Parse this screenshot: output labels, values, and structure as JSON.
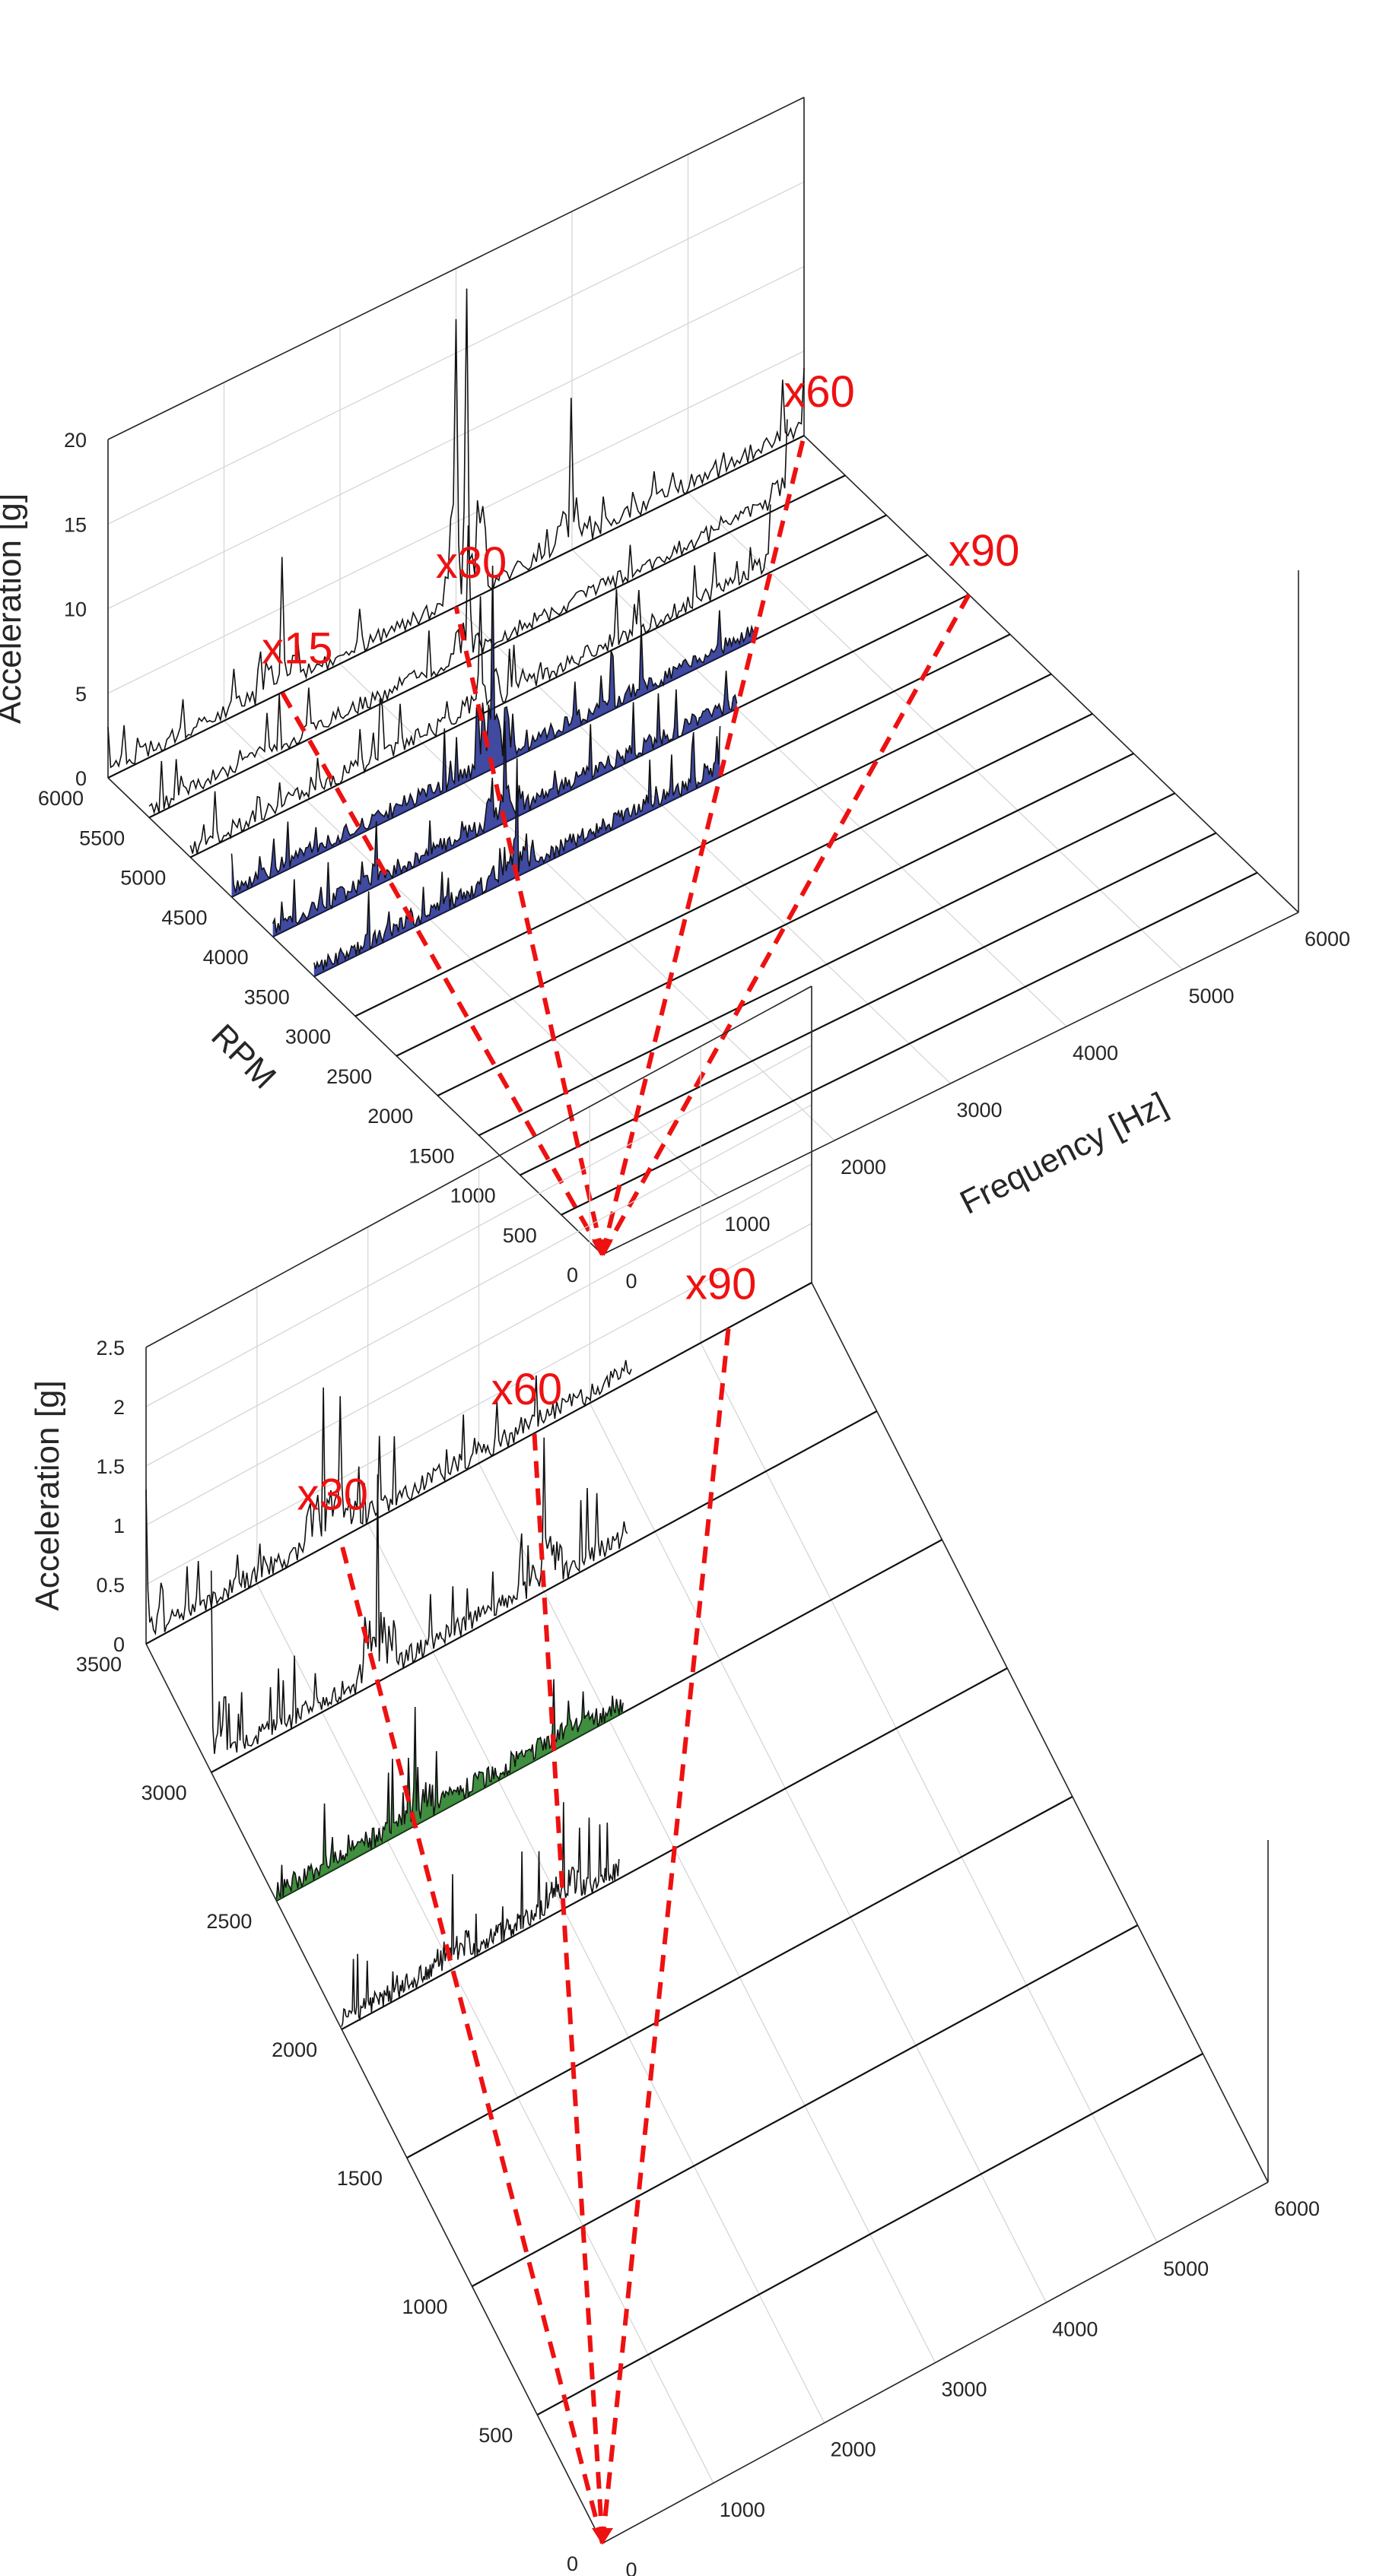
{
  "chart_data": [
    {
      "type": "waterfall-3d",
      "zlabel": "Acceleration [g]",
      "ylabel": "RPM",
      "xlabel": "Frequency [Hz]",
      "xlim": [
        0,
        6000
      ],
      "ylim": [
        0,
        6000
      ],
      "zlim": [
        0,
        20
      ],
      "xticks": [
        "0",
        "1000",
        "2000",
        "3000",
        "4000",
        "5000",
        "6000"
      ],
      "yticks": [
        "0",
        "500",
        "1000",
        "1500",
        "2000",
        "2500",
        "3000",
        "3500",
        "4000",
        "4500",
        "5000",
        "5500",
        "6000"
      ],
      "zticks": [
        "0",
        "5",
        "10",
        "15",
        "20"
      ],
      "series_rpm": [
        6000,
        5500,
        5000,
        4500,
        4000,
        3500,
        3000,
        2500,
        2000,
        1500,
        1000,
        500
      ],
      "filled_rpm": [
        4500,
        4000,
        3500
      ],
      "fill_color": "#1f2a8f",
      "peak_lines": [
        {
          "rpm": 6000,
          "freq": 0,
          "amp": 3
        },
        {
          "rpm": 6000,
          "freq": 1500,
          "amp": 8
        },
        {
          "rpm": 6000,
          "freq": 3000,
          "amp": 17
        },
        {
          "rpm": 6000,
          "freq": 3100,
          "amp": 18.5
        },
        {
          "rpm": 6000,
          "freq": 4000,
          "amp": 9
        },
        {
          "rpm": 6000,
          "freq": 6000,
          "amp": 4
        },
        {
          "rpm": 5500,
          "freq": 2750,
          "amp": 8
        },
        {
          "rpm": 5500,
          "freq": 5500,
          "amp": 5
        },
        {
          "rpm": 5000,
          "freq": 2500,
          "amp": 7
        },
        {
          "rpm": 5000,
          "freq": 5000,
          "amp": 4
        },
        {
          "rpm": 4500,
          "freq": 2250,
          "amp": 12
        },
        {
          "rpm": 4000,
          "freq": 2000,
          "amp": 6
        },
        {
          "rpm": 3500,
          "freq": 1750,
          "amp": 7
        },
        {
          "rpm": 3500,
          "freq": 3500,
          "amp": 3
        }
      ],
      "orders": [
        {
          "label": "x15",
          "order": 15
        },
        {
          "label": "x30",
          "order": 30
        },
        {
          "label": "x60",
          "order": 60
        },
        {
          "label": "x90",
          "order": 90
        }
      ],
      "order_line_color": "#ee1111"
    },
    {
      "type": "waterfall-3d",
      "zlabel": "Acceleration [g]",
      "ylabel": "",
      "xlabel": "",
      "xlim": [
        0,
        6000
      ],
      "ylim": [
        0,
        3500
      ],
      "zlim": [
        0,
        2.5
      ],
      "xticks": [
        "0",
        "1000",
        "2000",
        "3000",
        "4000",
        "5000",
        "6000"
      ],
      "yticks": [
        "0",
        "500",
        "1000",
        "1500",
        "2000",
        "2500",
        "3000",
        "3500"
      ],
      "zticks": [
        "0",
        "0.5",
        "1",
        "1.5",
        "2",
        "2.5"
      ],
      "series_rpm": [
        3500,
        3000,
        2500,
        2000,
        1500,
        1000,
        500
      ],
      "filled_rpm": [
        2500
      ],
      "fill_color": "#1f7a1f",
      "peak_lines": [
        {
          "rpm": 3500,
          "freq": 0,
          "amp": 1.3
        },
        {
          "rpm": 3500,
          "freq": 1600,
          "amp": 1.35
        },
        {
          "rpm": 3500,
          "freq": 1750,
          "amp": 1.2
        },
        {
          "rpm": 3000,
          "freq": 0,
          "amp": 1.7
        },
        {
          "rpm": 3000,
          "freq": 1500,
          "amp": 1.75
        },
        {
          "rpm": 3000,
          "freq": 3000,
          "amp": 1.3
        },
        {
          "rpm": 2500,
          "freq": 1250,
          "amp": 1.0
        },
        {
          "rpm": 2500,
          "freq": 2500,
          "amp": 0.6
        },
        {
          "rpm": 2500,
          "freq": 3750,
          "amp": 0.7
        },
        {
          "rpm": 2000,
          "freq": 1000,
          "amp": 0.8
        },
        {
          "rpm": 2000,
          "freq": 2000,
          "amp": 0.9
        },
        {
          "rpm": 2000,
          "freq": 3000,
          "amp": 0.6
        }
      ],
      "orders": [
        {
          "label": "x30",
          "order": 30
        },
        {
          "label": "x60",
          "order": 60
        },
        {
          "label": "x90",
          "order": 90
        }
      ],
      "order_line_color": "#ee1111"
    }
  ]
}
